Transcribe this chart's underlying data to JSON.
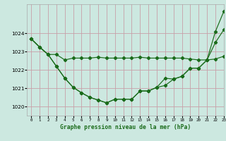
{
  "title": "Graphe pression niveau de la mer (hPa)",
  "bg_color": "#cce8e0",
  "grid_color": "#c8a0a8",
  "line_color": "#1a6b1a",
  "title_color": "#1a6b1a",
  "xlim": [
    -0.5,
    23
  ],
  "ylim": [
    1019.5,
    1025.6
  ],
  "yticks": [
    1020,
    1021,
    1022,
    1023,
    1024
  ],
  "xticks": [
    0,
    1,
    2,
    3,
    4,
    5,
    6,
    7,
    8,
    9,
    10,
    11,
    12,
    13,
    14,
    15,
    16,
    17,
    18,
    19,
    20,
    21,
    22,
    23
  ],
  "line1_x": [
    0,
    1,
    2,
    3,
    4,
    5,
    6,
    7,
    8,
    9,
    10,
    11,
    12,
    13,
    14,
    15,
    16,
    17,
    18,
    19,
    20,
    21,
    22,
    23
  ],
  "line1_y": [
    1023.7,
    1023.25,
    1022.85,
    1022.2,
    1021.55,
    1021.05,
    1020.75,
    1020.5,
    1020.35,
    1020.2,
    1020.4,
    1020.4,
    1020.4,
    1020.85,
    1020.85,
    1021.05,
    1021.55,
    1021.5,
    1021.65,
    1022.1,
    1022.1,
    1022.55,
    1024.1,
    1025.2
  ],
  "line2_x": [
    0,
    1,
    2,
    3,
    4,
    5,
    6,
    7,
    8,
    9,
    10,
    11,
    12,
    13,
    14,
    15,
    16,
    17,
    18,
    19,
    20,
    21,
    22,
    23
  ],
  "line2_y": [
    1023.7,
    1023.25,
    1022.85,
    1022.85,
    1022.55,
    1022.65,
    1022.65,
    1022.65,
    1022.7,
    1022.65,
    1022.65,
    1022.65,
    1022.65,
    1022.7,
    1022.65,
    1022.65,
    1022.65,
    1022.65,
    1022.65,
    1022.6,
    1022.55,
    1022.55,
    1022.6,
    1022.75
  ],
  "line3_x": [
    0,
    1,
    2,
    3,
    4,
    5,
    6,
    7,
    8,
    9,
    10,
    11,
    12,
    13,
    14,
    15,
    16,
    17,
    18,
    19,
    20,
    21,
    22,
    23
  ],
  "line3_y": [
    1023.7,
    1023.25,
    1022.85,
    1022.2,
    1021.55,
    1021.05,
    1020.75,
    1020.5,
    1020.35,
    1020.2,
    1020.4,
    1020.4,
    1020.4,
    1020.85,
    1020.85,
    1021.05,
    1021.15,
    1021.5,
    1021.65,
    1022.1,
    1022.1,
    1022.55,
    1023.5,
    1024.2
  ]
}
